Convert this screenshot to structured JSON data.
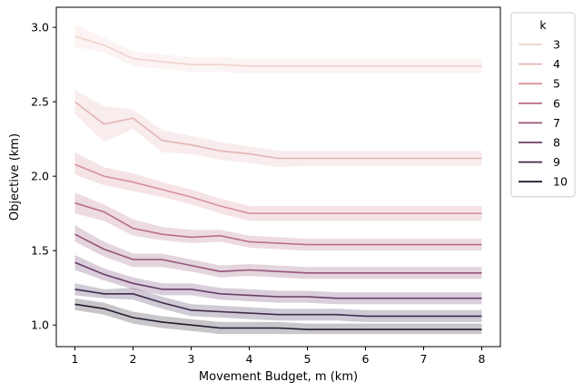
{
  "chart_data": {
    "type": "line",
    "title": "",
    "xlabel": "Movement Budget, m (km)",
    "ylabel": "Objective (km)",
    "xlim": [
      0.68,
      8.32
    ],
    "ylim": [
      0.855,
      3.135
    ],
    "x_ticks": [
      1,
      2,
      3,
      4,
      5,
      6,
      7,
      8
    ],
    "y_ticks": [
      1.0,
      1.5,
      2.0,
      2.5,
      3.0
    ],
    "y_tick_labels": [
      "1.0",
      "1.5",
      "2.0",
      "2.5",
      "3.0"
    ],
    "grid": false,
    "legend_title": "k",
    "legend_position": "outside-right-top",
    "x": [
      1,
      1.5,
      2,
      2.5,
      3,
      3.5,
      4,
      4.5,
      5,
      5.5,
      6,
      6.5,
      7,
      7.5,
      8
    ],
    "series": [
      {
        "name": "3",
        "color": "#f0d3cd",
        "values": [
          2.94,
          2.88,
          2.79,
          2.77,
          2.75,
          2.75,
          2.74,
          2.74,
          2.74,
          2.74,
          2.74,
          2.74,
          2.74,
          2.74,
          2.74
        ],
        "lower": [
          2.87,
          2.83,
          2.74,
          2.72,
          2.7,
          2.7,
          2.69,
          2.69,
          2.69,
          2.69,
          2.69,
          2.69,
          2.69,
          2.69,
          2.69
        ],
        "upper": [
          3.02,
          2.93,
          2.84,
          2.82,
          2.8,
          2.8,
          2.79,
          2.79,
          2.79,
          2.79,
          2.79,
          2.79,
          2.79,
          2.79,
          2.79
        ]
      },
      {
        "name": "4",
        "color": "#e4b4b3",
        "values": [
          2.5,
          2.35,
          2.39,
          2.24,
          2.21,
          2.17,
          2.15,
          2.12,
          2.12,
          2.12,
          2.12,
          2.12,
          2.12,
          2.12,
          2.12
        ],
        "lower": [
          2.42,
          2.23,
          2.32,
          2.16,
          2.15,
          2.11,
          2.09,
          2.06,
          2.07,
          2.07,
          2.07,
          2.07,
          2.07,
          2.07,
          2.07
        ],
        "upper": [
          2.58,
          2.47,
          2.45,
          2.31,
          2.27,
          2.23,
          2.2,
          2.17,
          2.17,
          2.17,
          2.17,
          2.17,
          2.17,
          2.17,
          2.17
        ]
      },
      {
        "name": "5",
        "color": "#d6919a",
        "values": [
          2.08,
          2.0,
          1.96,
          1.91,
          1.86,
          1.8,
          1.75,
          1.75,
          1.75,
          1.75,
          1.75,
          1.75,
          1.75,
          1.75,
          1.75
        ],
        "lower": [
          2.01,
          1.94,
          1.9,
          1.86,
          1.81,
          1.75,
          1.7,
          1.7,
          1.7,
          1.7,
          1.7,
          1.7,
          1.7,
          1.7,
          1.7
        ],
        "upper": [
          2.16,
          2.06,
          2.02,
          1.96,
          1.91,
          1.85,
          1.8,
          1.8,
          1.8,
          1.8,
          1.8,
          1.8,
          1.8,
          1.8,
          1.8
        ]
      },
      {
        "name": "6",
        "color": "#b76f89",
        "values": [
          1.82,
          1.76,
          1.65,
          1.61,
          1.59,
          1.6,
          1.56,
          1.55,
          1.54,
          1.54,
          1.54,
          1.54,
          1.54,
          1.54,
          1.54
        ],
        "lower": [
          1.75,
          1.7,
          1.6,
          1.57,
          1.55,
          1.56,
          1.52,
          1.51,
          1.5,
          1.5,
          1.5,
          1.5,
          1.5,
          1.5,
          1.5
        ],
        "upper": [
          1.89,
          1.81,
          1.71,
          1.66,
          1.64,
          1.64,
          1.6,
          1.59,
          1.58,
          1.58,
          1.58,
          1.58,
          1.58,
          1.58,
          1.58
        ]
      },
      {
        "name": "7",
        "color": "#955578",
        "values": [
          1.61,
          1.51,
          1.44,
          1.44,
          1.4,
          1.36,
          1.37,
          1.36,
          1.35,
          1.35,
          1.35,
          1.35,
          1.35,
          1.35,
          1.35
        ],
        "lower": [
          1.56,
          1.46,
          1.39,
          1.39,
          1.36,
          1.32,
          1.33,
          1.32,
          1.31,
          1.31,
          1.31,
          1.31,
          1.31,
          1.31,
          1.31
        ],
        "upper": [
          1.67,
          1.56,
          1.48,
          1.48,
          1.44,
          1.4,
          1.41,
          1.4,
          1.39,
          1.39,
          1.39,
          1.39,
          1.39,
          1.39,
          1.39
        ]
      },
      {
        "name": "8",
        "color": "#6b3d6a",
        "values": [
          1.42,
          1.34,
          1.28,
          1.24,
          1.24,
          1.21,
          1.2,
          1.19,
          1.19,
          1.18,
          1.18,
          1.18,
          1.18,
          1.18,
          1.18
        ],
        "lower": [
          1.37,
          1.3,
          1.24,
          1.2,
          1.2,
          1.17,
          1.16,
          1.15,
          1.15,
          1.14,
          1.14,
          1.14,
          1.14,
          1.14,
          1.14
        ],
        "upper": [
          1.47,
          1.38,
          1.32,
          1.28,
          1.28,
          1.25,
          1.24,
          1.23,
          1.23,
          1.22,
          1.22,
          1.22,
          1.22,
          1.22,
          1.22
        ]
      },
      {
        "name": "9",
        "color": "#412a4f",
        "values": [
          1.24,
          1.21,
          1.21,
          1.15,
          1.1,
          1.09,
          1.08,
          1.07,
          1.07,
          1.07,
          1.06,
          1.06,
          1.06,
          1.06,
          1.06
        ],
        "lower": [
          1.2,
          1.18,
          1.17,
          1.11,
          1.06,
          1.05,
          1.04,
          1.03,
          1.03,
          1.03,
          1.02,
          1.02,
          1.02,
          1.02,
          1.02
        ],
        "upper": [
          1.28,
          1.24,
          1.25,
          1.19,
          1.14,
          1.13,
          1.12,
          1.11,
          1.11,
          1.11,
          1.1,
          1.1,
          1.1,
          1.1,
          1.1
        ]
      },
      {
        "name": "10",
        "color": "#231a2e",
        "values": [
          1.14,
          1.11,
          1.05,
          1.02,
          1.0,
          0.98,
          0.98,
          0.98,
          0.97,
          0.97,
          0.97,
          0.97,
          0.97,
          0.97,
          0.97
        ],
        "lower": [
          1.1,
          1.07,
          1.01,
          0.98,
          0.96,
          0.94,
          0.94,
          0.94,
          0.94,
          0.94,
          0.94,
          0.94,
          0.94,
          0.94,
          0.94
        ],
        "upper": [
          1.18,
          1.15,
          1.09,
          1.06,
          1.04,
          1.02,
          1.02,
          1.02,
          1.01,
          1.01,
          1.01,
          1.01,
          1.01,
          1.01,
          1.01
        ]
      }
    ]
  }
}
